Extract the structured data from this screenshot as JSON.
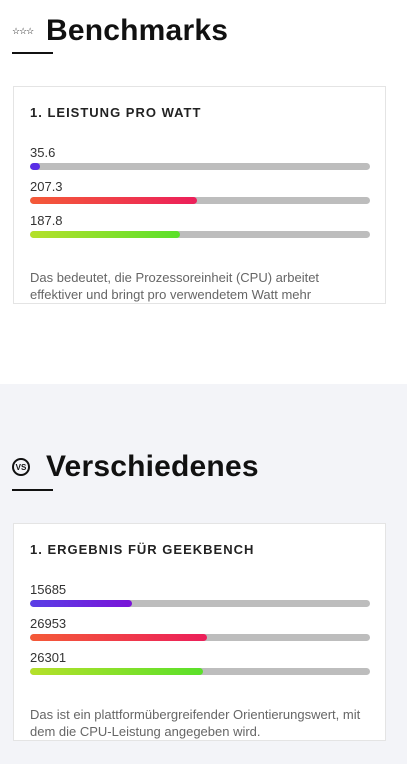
{
  "benchmarks": {
    "heading": "Benchmarks",
    "card": {
      "title": "1. LEISTUNG PRO WATT",
      "bars": [
        {
          "value": "35.6",
          "fill": 0.02,
          "gradient": [
            "#5a2ee6",
            "#5a2ee6"
          ]
        },
        {
          "value": "207.3",
          "fill": 0.49,
          "gradient": [
            "#f45a38",
            "#ec1f5a"
          ]
        },
        {
          "value": "187.8",
          "fill": 0.44,
          "gradient": [
            "#b5e02a",
            "#5ae02a"
          ]
        }
      ],
      "description": "Das bedeutet, die Prozessoreinheit (CPU) arbeitet effektiver und bringt pro verwendetem Watt mehr"
    }
  },
  "misc": {
    "heading": "Verschiedenes",
    "badge": "VS",
    "card": {
      "title": "1. ERGEBNIS FÜR GEEKBENCH",
      "bars": [
        {
          "value": "15685",
          "fill": 0.3,
          "gradient": [
            "#5a3fe6",
            "#7a14d8"
          ]
        },
        {
          "value": "26953",
          "fill": 0.52,
          "gradient": [
            "#f45a38",
            "#ec1f5a"
          ]
        },
        {
          "value": "26301",
          "fill": 0.51,
          "gradient": [
            "#b5e02a",
            "#5ae02a"
          ]
        }
      ],
      "description": "Das ist ein plattformübergreifender Orientierungswert, mit dem die CPU-Leistung angegeben wird."
    }
  }
}
